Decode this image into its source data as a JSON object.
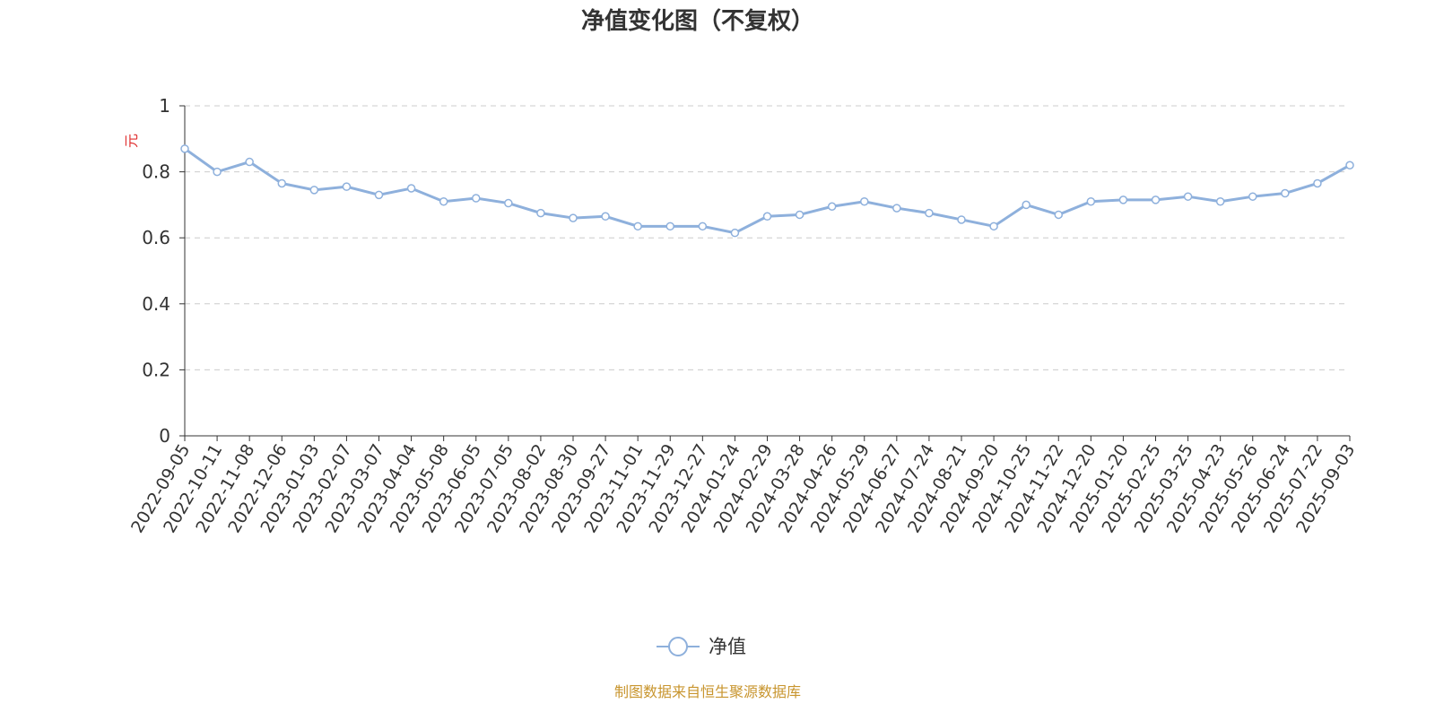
{
  "chart_data": {
    "type": "line",
    "title": "净值变化图（不复权）",
    "y_label": "元",
    "categories": [
      "2022-09-05",
      "2022-10-11",
      "2022-11-08",
      "2022-12-06",
      "2023-01-03",
      "2023-02-07",
      "2023-03-07",
      "2023-04-04",
      "2023-05-08",
      "2023-06-05",
      "2023-07-05",
      "2023-08-02",
      "2023-08-30",
      "2023-09-27",
      "2023-11-01",
      "2023-11-29",
      "2023-12-27",
      "2024-01-24",
      "2024-02-29",
      "2024-03-28",
      "2024-04-26",
      "2024-05-29",
      "2024-06-27",
      "2024-07-24",
      "2024-08-21",
      "2024-09-20",
      "2024-10-25",
      "2024-11-22",
      "2024-12-20",
      "2025-01-20",
      "2025-02-25",
      "2025-03-25",
      "2025-04-23",
      "2025-05-26",
      "2025-06-24",
      "2025-07-22",
      "2025-09-03"
    ],
    "series": [
      {
        "name": "净值",
        "color": "#8eb0dc",
        "values": [
          0.87,
          0.8,
          0.83,
          0.765,
          0.745,
          0.755,
          0.73,
          0.75,
          0.71,
          0.72,
          0.705,
          0.675,
          0.66,
          0.665,
          0.635,
          0.635,
          0.635,
          0.615,
          0.665,
          0.67,
          0.695,
          0.71,
          0.69,
          0.675,
          0.655,
          0.635,
          0.7,
          0.67,
          0.71,
          0.715,
          0.715,
          0.725,
          0.71,
          0.725,
          0.735,
          0.765,
          0.82
        ]
      }
    ],
    "ylim": [
      0,
      1
    ],
    "yticks": [
      0,
      0.2,
      0.4,
      0.6,
      0.8,
      1
    ],
    "grid": true,
    "source": "制图数据来自恒生聚源数据库"
  }
}
